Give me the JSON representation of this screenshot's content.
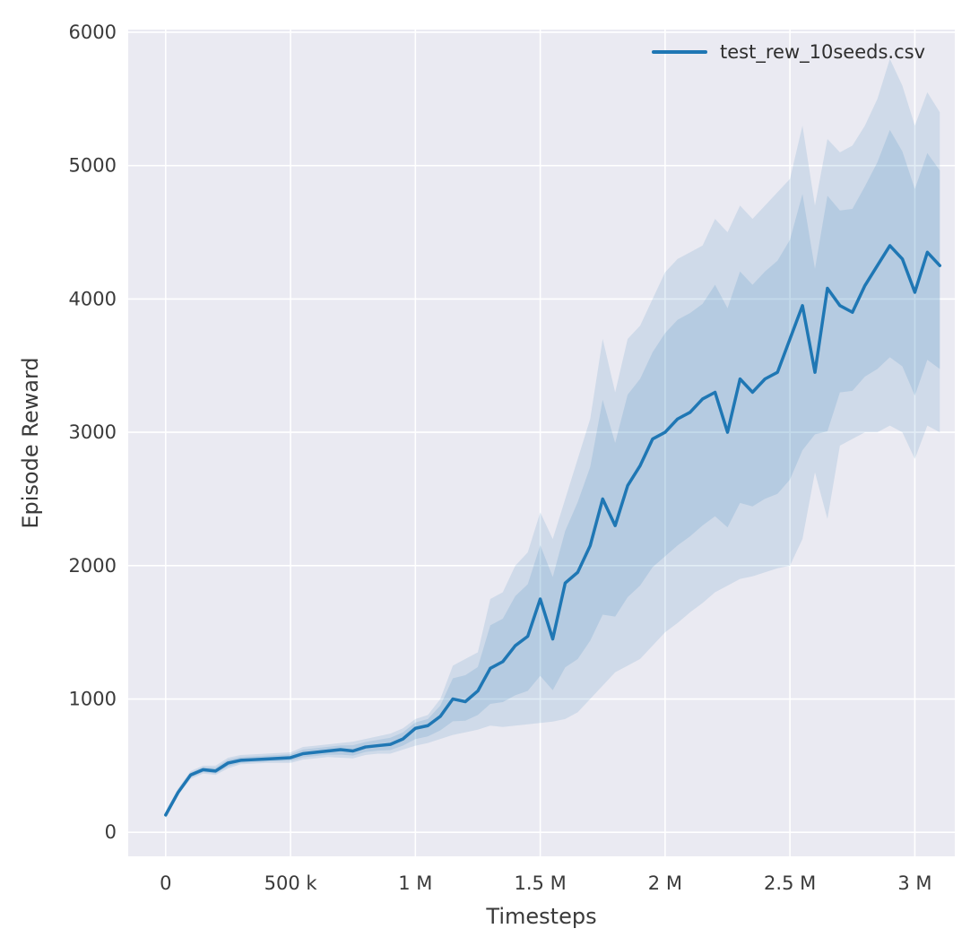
{
  "figure": {
    "background": "#ffffff",
    "plot_background": "#eaeaf2",
    "grid_color": "#ffffff",
    "text_color": "#3a3a3a",
    "tick_color": "#3a3a3a"
  },
  "chart_data": {
    "type": "line",
    "title": "",
    "xlabel": "Timesteps",
    "ylabel": "Episode Reward",
    "xlim": [
      -150000,
      3160000
    ],
    "ylim": [
      -180,
      6020
    ],
    "grid": true,
    "xticks": {
      "values": [
        0,
        500000,
        1000000,
        1500000,
        2000000,
        2500000,
        3000000
      ],
      "labels": [
        "0",
        "500 k",
        "1 M",
        "1.5 M",
        "2 M",
        "2.5 M",
        "3 M"
      ]
    },
    "yticks": {
      "values": [
        0,
        1000,
        2000,
        3000,
        4000,
        5000,
        6000
      ],
      "labels": [
        "0",
        "1000",
        "2000",
        "3000",
        "4000",
        "5000",
        "6000"
      ]
    },
    "legend": {
      "position": "upper right",
      "entries": [
        "test_rew_10seeds.csv"
      ]
    },
    "series": [
      {
        "name": "test_rew_10seeds.csv",
        "color": "#1f77b4",
        "line_width": 3.5,
        "band_outer_alpha": 0.13,
        "band_inner_alpha": 0.15,
        "band_inner_fraction": 0.62,
        "x": [
          0,
          50000,
          100000,
          150000,
          200000,
          250000,
          300000,
          350000,
          400000,
          450000,
          500000,
          550000,
          600000,
          650000,
          700000,
          750000,
          800000,
          850000,
          900000,
          950000,
          1000000,
          1050000,
          1100000,
          1150000,
          1200000,
          1250000,
          1300000,
          1350000,
          1400000,
          1450000,
          1500000,
          1550000,
          1600000,
          1650000,
          1700000,
          1750000,
          1800000,
          1850000,
          1900000,
          1950000,
          2000000,
          2050000,
          2100000,
          2150000,
          2200000,
          2250000,
          2300000,
          2350000,
          2400000,
          2450000,
          2500000,
          2550000,
          2600000,
          2650000,
          2700000,
          2750000,
          2800000,
          2850000,
          2900000,
          2950000,
          3000000,
          3050000,
          3100000
        ],
        "y_mean": [
          130,
          300,
          430,
          470,
          460,
          520,
          540,
          545,
          550,
          555,
          560,
          590,
          600,
          610,
          620,
          610,
          640,
          650,
          660,
          700,
          780,
          800,
          870,
          1000,
          980,
          1060,
          1230,
          1280,
          1400,
          1470,
          1750,
          1450,
          1870,
          1950,
          2150,
          2500,
          2300,
          2600,
          2750,
          2950,
          3000,
          3100,
          3150,
          3250,
          3300,
          3000,
          3400,
          3300,
          3400,
          3450,
          3700,
          3950,
          3450,
          4080,
          3950,
          3900,
          4100,
          4250,
          4400,
          4300,
          4050,
          4350,
          4250
        ],
        "band_lower": [
          100,
          280,
          400,
          440,
          430,
          480,
          510,
          515,
          520,
          520,
          520,
          545,
          555,
          565,
          560,
          555,
          580,
          590,
          590,
          620,
          650,
          670,
          700,
          730,
          750,
          770,
          800,
          790,
          800,
          810,
          820,
          830,
          850,
          900,
          1000,
          1100,
          1200,
          1250,
          1300,
          1400,
          1500,
          1570,
          1650,
          1720,
          1800,
          1850,
          1900,
          1920,
          1950,
          1980,
          2000,
          2200,
          2700,
          2350,
          2900,
          2950,
          3000,
          3000,
          3050,
          3000,
          2800,
          3050,
          3000
        ],
        "band_upper": [
          160,
          330,
          460,
          500,
          500,
          560,
          580,
          585,
          590,
          595,
          600,
          640,
          650,
          660,
          670,
          680,
          700,
          720,
          740,
          780,
          850,
          880,
          1000,
          1250,
          1300,
          1350,
          1750,
          1800,
          2000,
          2100,
          2400,
          2200,
          2500,
          2800,
          3100,
          3700,
          3300,
          3700,
          3800,
          4000,
          4200,
          4300,
          4350,
          4400,
          4600,
          4500,
          4700,
          4600,
          4700,
          4800,
          4900,
          5300,
          4700,
          5200,
          5100,
          5150,
          5300,
          5500,
          5800,
          5600,
          5300,
          5550,
          5400
        ]
      }
    ]
  }
}
